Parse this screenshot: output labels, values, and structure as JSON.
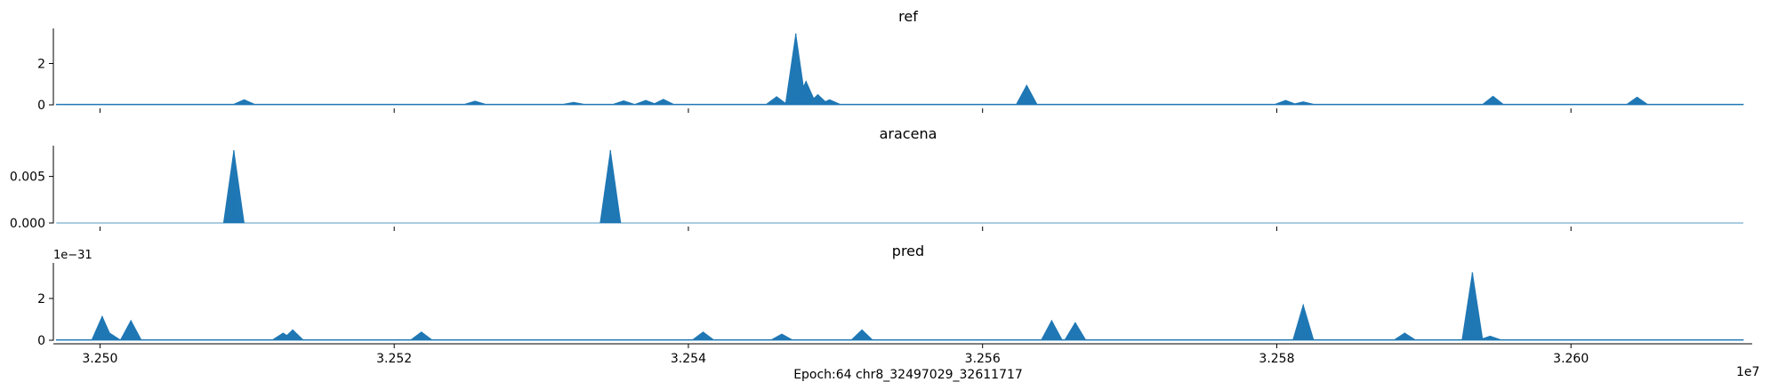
{
  "figure": {
    "xlabel": "Epoch:64 chr8_32497029_32611717",
    "x_offset_label": "1e7"
  },
  "chart_data": [
    {
      "type": "area",
      "title": "ref",
      "color": "#1f77b4",
      "xlim": [
        32496830,
        32611717
      ],
      "ylim": [
        0,
        3.7
      ],
      "yticks": [
        0,
        2
      ],
      "ytick_labels": [
        "0",
        "2"
      ],
      "yoffset_label": "",
      "xticks": [
        32500000,
        32520000,
        32540000,
        32560000,
        32580000,
        32600000
      ],
      "xtick_labels": [
        "3.250",
        "3.252",
        "3.254",
        "3.256",
        "3.258",
        "3.260"
      ],
      "show_xtick_labels": false,
      "baseline": 0.03,
      "peaks": [
        [
          32509800,
          0.25
        ],
        [
          32525500,
          0.18
        ],
        [
          32532200,
          0.12
        ],
        [
          32535600,
          0.2
        ],
        [
          32537100,
          0.22
        ],
        [
          32538300,
          0.27
        ],
        [
          32546000,
          0.4
        ],
        [
          32547300,
          3.45
        ],
        [
          32548000,
          1.15
        ],
        [
          32548800,
          0.5
        ],
        [
          32549600,
          0.25
        ],
        [
          32563000,
          0.95
        ],
        [
          32580600,
          0.22
        ],
        [
          32581800,
          0.15
        ],
        [
          32594700,
          0.42
        ],
        [
          32604500,
          0.38
        ]
      ]
    },
    {
      "type": "area",
      "title": "aracena",
      "color": "#1f77b4",
      "xlim": [
        32496830,
        32611717
      ],
      "ylim": [
        0,
        0.0083
      ],
      "yticks": [
        0,
        0.005
      ],
      "ytick_labels": [
        "0.000",
        "0.005"
      ],
      "yoffset_label": "",
      "xticks": [
        32500000,
        32520000,
        32540000,
        32560000,
        32580000,
        32600000
      ],
      "xtick_labels": [
        "3.250",
        "3.252",
        "3.254",
        "3.256",
        "3.258",
        "3.260"
      ],
      "show_xtick_labels": false,
      "baseline": 0,
      "peaks": [
        [
          32509100,
          0.0078
        ],
        [
          32534700,
          0.0078
        ]
      ]
    },
    {
      "type": "area",
      "title": "pred",
      "color": "#1f77b4",
      "xlim": [
        32496830,
        32611717
      ],
      "ylim": [
        0,
        3.7
      ],
      "yticks": [
        0,
        2
      ],
      "ytick_labels": [
        "0",
        "2"
      ],
      "yoffset_label": "1e−31",
      "xticks": [
        32500000,
        32520000,
        32540000,
        32560000,
        32580000,
        32600000
      ],
      "xtick_labels": [
        "3.250",
        "3.252",
        "3.254",
        "3.256",
        "3.258",
        "3.260"
      ],
      "show_xtick_labels": true,
      "baseline": 0.03,
      "peaks": [
        [
          32500150,
          1.15
        ],
        [
          32500650,
          0.35
        ],
        [
          32502100,
          0.95
        ],
        [
          32512450,
          0.35
        ],
        [
          32513100,
          0.5
        ],
        [
          32521850,
          0.4
        ],
        [
          32541000,
          0.4
        ],
        [
          32546350,
          0.3
        ],
        [
          32551800,
          0.5
        ],
        [
          32564700,
          0.95
        ],
        [
          32566300,
          0.85
        ],
        [
          32581800,
          1.7
        ],
        [
          32588700,
          0.35
        ],
        [
          32593300,
          3.25
        ],
        [
          32594500,
          0.2
        ]
      ]
    }
  ]
}
